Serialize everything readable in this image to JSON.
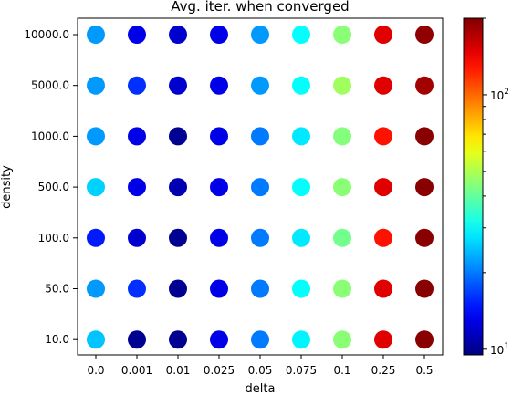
{
  "chart_data": {
    "type": "scatter",
    "title": "Avg. iter. when converged",
    "xlabel": "delta",
    "ylabel": "density",
    "x_categories": [
      "0.0",
      "0.001",
      "0.01",
      "0.025",
      "0.05",
      "0.075",
      "0.1",
      "0.25",
      "0.5"
    ],
    "y_categories": [
      "10.0",
      "50.0",
      "100.0",
      "500.0",
      "1000.0",
      "5000.0",
      "10000.0"
    ],
    "colormap": "jet",
    "colorbar": {
      "scale": "log",
      "range": [
        9.5,
        200
      ],
      "tick_labels": [
        "10^1",
        "10^2"
      ]
    },
    "points_note": "value = avg. iterations at each (delta, density) cell, read from the colour scale",
    "values": [
      [
        25,
        10,
        10,
        13,
        20,
        29,
        45,
        150,
        195
      ],
      [
        22,
        16,
        10,
        13,
        20,
        30,
        45,
        150,
        195
      ],
      [
        15,
        12,
        10,
        13,
        20,
        28,
        42,
        130,
        195
      ],
      [
        26,
        13,
        11,
        13,
        20,
        30,
        45,
        150,
        195
      ],
      [
        22,
        13,
        10,
        13,
        20,
        28,
        44,
        130,
        195
      ],
      [
        22,
        16,
        12,
        13,
        22,
        30,
        48,
        150,
        180
      ],
      [
        22,
        13,
        12,
        13,
        22,
        30,
        45,
        150,
        190
      ]
    ]
  }
}
